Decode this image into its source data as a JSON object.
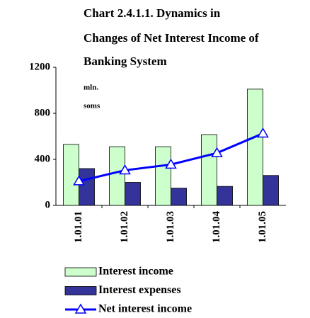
{
  "chart_data": {
    "type": "bar",
    "title": [
      "Chart 2.4.1.1. Dynamics in",
      "Changes of Net Interest Income of",
      "Banking System"
    ],
    "y_unit": [
      "mln.",
      "soms"
    ],
    "categories": [
      "1.01.01",
      "1.01.02",
      "1.01.03",
      "1.01.04",
      "1.01.05"
    ],
    "series": [
      {
        "name": "Interest income",
        "type": "bar",
        "color": "#ccffcc",
        "values": [
          530,
          510,
          510,
          615,
          1010
        ]
      },
      {
        "name": "Interest expenses",
        "type": "bar",
        "color": "#333399",
        "values": [
          320,
          200,
          150,
          165,
          260
        ]
      },
      {
        "name": "Net interest income",
        "type": "line",
        "color": "#0000ff",
        "values": [
          210,
          305,
          355,
          455,
          625
        ]
      }
    ],
    "ylim": [
      0,
      1200
    ],
    "yticks": [
      0,
      400,
      800,
      1200
    ],
    "grid": false,
    "legend": "bottom"
  }
}
